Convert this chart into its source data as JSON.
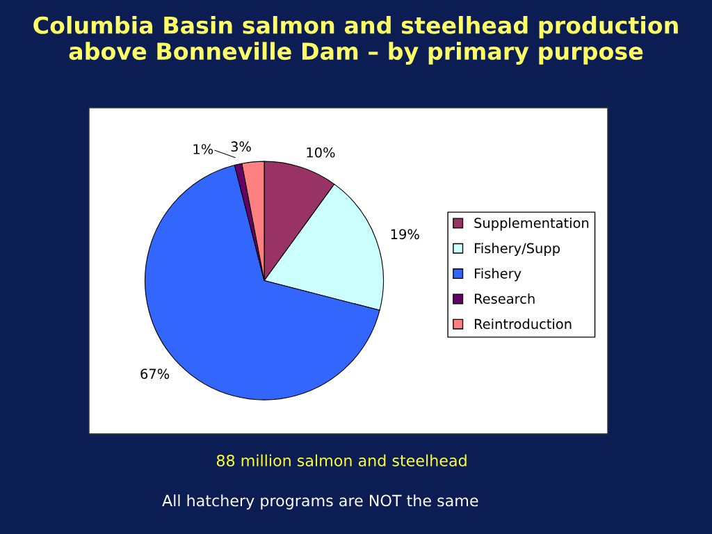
{
  "chart_data": {
    "type": "pie",
    "title": "Columbia Basin salmon and steelhead production above Bonneville Dam – by primary purpose",
    "categories": [
      "Supplementation",
      "Fishery/Supp",
      "Fishery",
      "Research",
      "Reintroduction"
    ],
    "values": [
      10,
      19,
      67,
      1,
      3
    ],
    "value_labels": [
      "10%",
      "19%",
      "67%",
      "1%",
      "3%"
    ],
    "colors": [
      "#993366",
      "#ccffff",
      "#3366ff",
      "#660066",
      "#ff8080"
    ],
    "legend": "right",
    "annotations": [
      "88 million salmon and steelhead",
      "All hatchery programs are NOT the same"
    ]
  }
}
